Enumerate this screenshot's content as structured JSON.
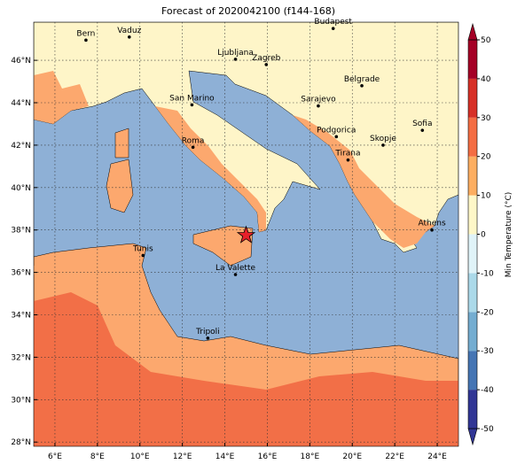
{
  "title": "Forecast of 2020042100 (f144-168)",
  "map": {
    "xlim": [
      5,
      25
    ],
    "ylim": [
      27.8,
      47.8
    ],
    "xticks": [
      {
        "value": 6,
        "label": "6°E"
      },
      {
        "value": 8,
        "label": "8°E"
      },
      {
        "value": 10,
        "label": "10°E"
      },
      {
        "value": 12,
        "label": "12°E"
      },
      {
        "value": 14,
        "label": "14°E"
      },
      {
        "value": 16,
        "label": "16°E"
      },
      {
        "value": 18,
        "label": "18°E"
      },
      {
        "value": 20,
        "label": "20°E"
      },
      {
        "value": 22,
        "label": "22°E"
      },
      {
        "value": 24,
        "label": "24°E"
      }
    ],
    "yticks": [
      {
        "value": 28,
        "label": "28°N"
      },
      {
        "value": 30,
        "label": "30°N"
      },
      {
        "value": 32,
        "label": "32°N"
      },
      {
        "value": 34,
        "label": "34°N"
      },
      {
        "value": 36,
        "label": "36°N"
      },
      {
        "value": 38,
        "label": "38°N"
      },
      {
        "value": 40,
        "label": "40°N"
      },
      {
        "value": 42,
        "label": "42°N"
      },
      {
        "value": 44,
        "label": "44°N"
      },
      {
        "value": 46,
        "label": "46°N"
      }
    ],
    "grid": true,
    "cities": [
      {
        "name": "Bern",
        "lon": 7.46,
        "lat": 46.95
      },
      {
        "name": "Vaduz",
        "lon": 9.5,
        "lat": 47.1
      },
      {
        "name": "Budapest",
        "lon": 19.1,
        "lat": 47.5
      },
      {
        "name": "Ljubljana",
        "lon": 14.5,
        "lat": 46.05
      },
      {
        "name": "Zagreb",
        "lon": 15.95,
        "lat": 45.8
      },
      {
        "name": "Belgrade",
        "lon": 20.45,
        "lat": 44.8
      },
      {
        "name": "San Marino",
        "lon": 12.45,
        "lat": 43.9
      },
      {
        "name": "Sarajevo",
        "lon": 18.4,
        "lat": 43.85
      },
      {
        "name": "Sofia",
        "lon": 23.3,
        "lat": 42.7
      },
      {
        "name": "Roma",
        "lon": 12.5,
        "lat": 41.9
      },
      {
        "name": "Podgorica",
        "lon": 19.25,
        "lat": 42.4
      },
      {
        "name": "Skopje",
        "lon": 21.45,
        "lat": 42.0
      },
      {
        "name": "Tirana",
        "lon": 19.8,
        "lat": 41.3
      },
      {
        "name": "Athens",
        "lon": 23.75,
        "lat": 38.0
      },
      {
        "name": "Tunis",
        "lon": 10.15,
        "lat": 36.8
      },
      {
        "name": "La Valette",
        "lon": 14.5,
        "lat": 35.9
      },
      {
        "name": "Tripoli",
        "lon": 13.2,
        "lat": 32.9
      }
    ],
    "star": {
      "lon": 15.0,
      "lat": 37.75,
      "color": "#e8202a"
    }
  },
  "colorbar": {
    "label": "Min Temperature (°C)",
    "lim": [
      -50,
      50
    ],
    "ticks": [
      -50,
      -40,
      -30,
      -20,
      -10,
      0,
      10,
      20,
      30,
      40,
      50
    ],
    "colors": [
      "#313695",
      "#4575b4",
      "#74add1",
      "#abd9e9",
      "#e0f3f8",
      "#fef7c8",
      "#fdae61",
      "#f46d43",
      "#d73027",
      "#a50026"
    ]
  }
}
